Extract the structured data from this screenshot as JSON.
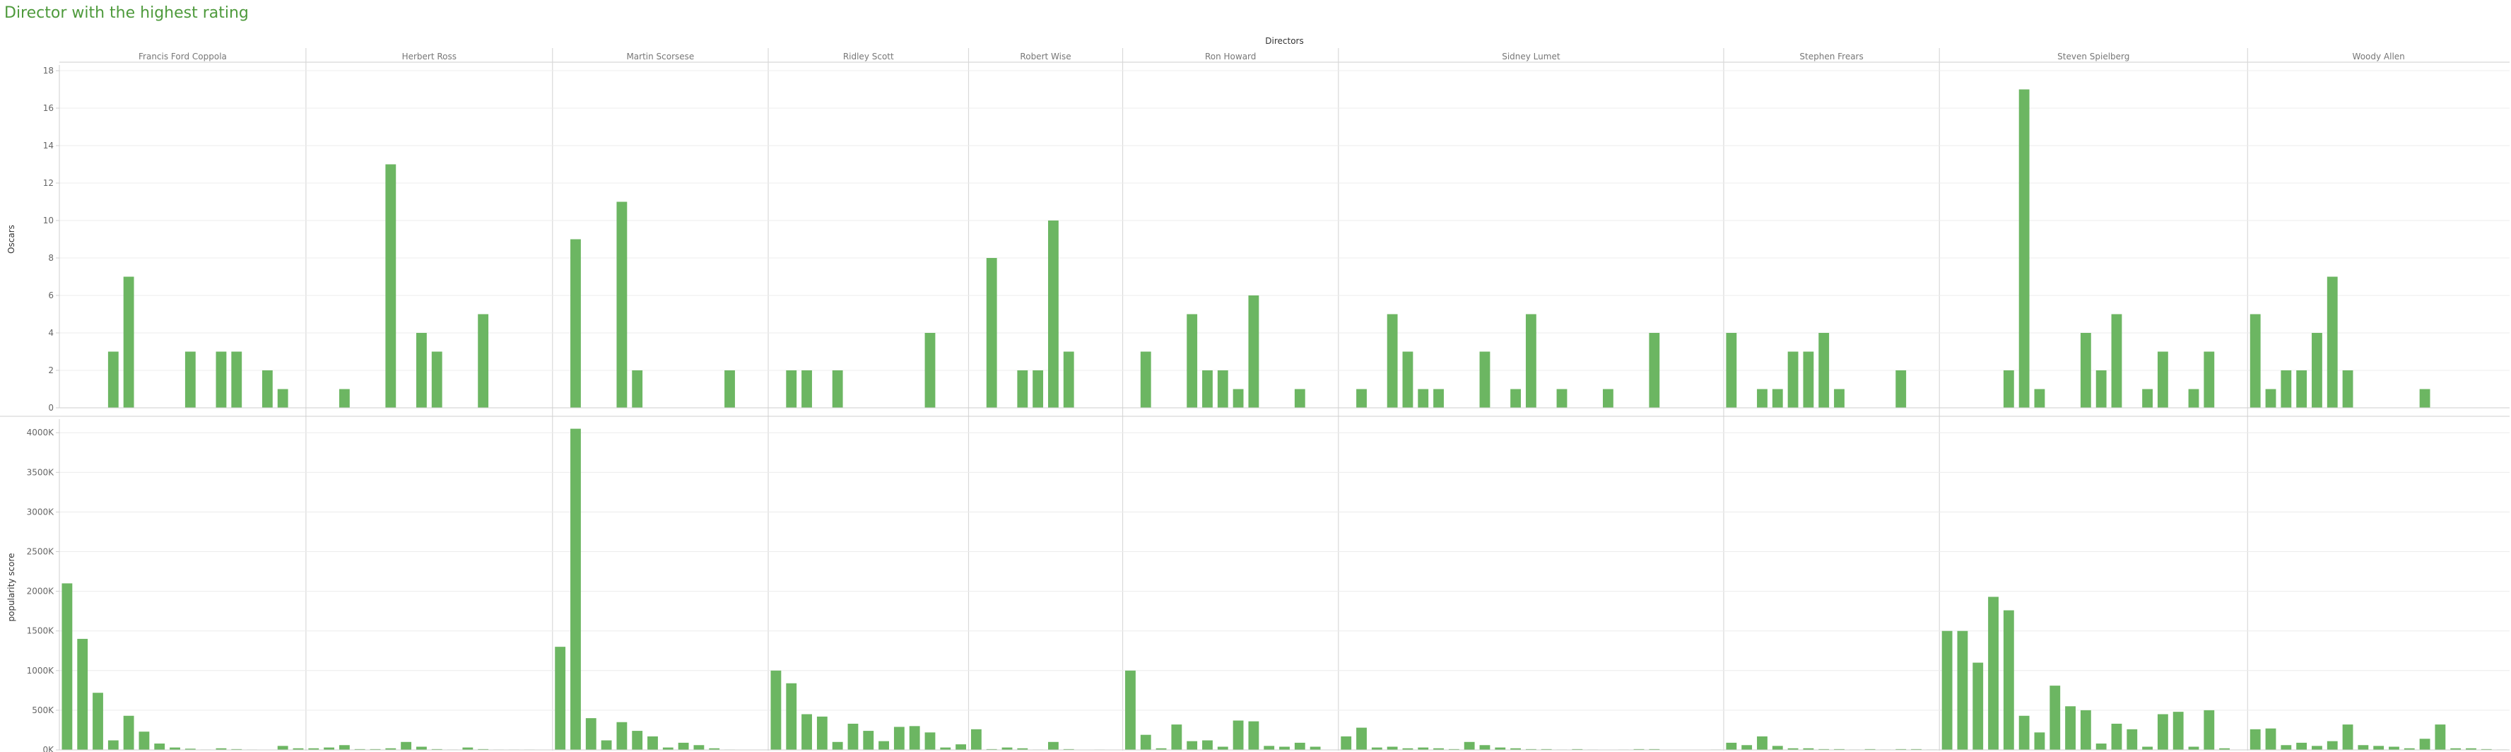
{
  "title": "Director with the highest rating",
  "colors": {
    "bar": "#6cb662",
    "title": "#4e9a3c",
    "grid": "#ececec",
    "axis": "#cfcfcf",
    "divider": "#d9d9d9"
  },
  "chart_data": {
    "type": "bar",
    "column_header": "Directors",
    "directors": [
      "Francis Ford Coppola",
      "Herbert Ross",
      "Martin Scorsese",
      "Ridley Scott",
      "Robert Wise",
      "Ron Howard",
      "Sidney Lumet",
      "Stephen Frears",
      "Steven Spielberg",
      "Woody Allen"
    ],
    "slots_per_director": [
      16,
      16,
      14,
      13,
      10,
      14,
      25,
      14,
      20,
      17
    ],
    "panels": [
      {
        "measure": "Oscars",
        "ylabel": "Oscars",
        "ylim": [
          0,
          18
        ],
        "ticks": [
          0,
          2,
          4,
          6,
          8,
          10,
          12,
          14,
          16,
          18
        ],
        "tick_labels": [
          "0",
          "2",
          "4",
          "6",
          "8",
          "10",
          "12",
          "14",
          "16",
          "18"
        ],
        "values": [
          [
            0,
            0,
            0,
            3,
            7,
            0,
            0,
            0,
            3,
            0,
            3,
            3,
            0,
            2,
            1,
            0
          ],
          [
            0,
            0,
            1,
            0,
            0,
            13,
            0,
            4,
            3,
            0,
            0,
            5,
            0,
            0,
            0,
            0
          ],
          [
            0,
            9,
            0,
            0,
            11,
            2,
            0,
            0,
            0,
            0,
            0,
            2,
            0,
            0
          ],
          [
            0,
            2,
            2,
            0,
            2,
            0,
            0,
            0,
            0,
            0,
            4,
            0,
            0
          ],
          [
            0,
            8,
            0,
            2,
            2,
            10,
            3,
            0,
            0,
            0
          ],
          [
            0,
            3,
            0,
            0,
            5,
            2,
            2,
            1,
            6,
            0,
            0,
            1,
            0,
            0
          ],
          [
            0,
            1,
            0,
            5,
            3,
            1,
            1,
            0,
            0,
            3,
            0,
            1,
            5,
            0,
            1,
            0,
            0,
            1,
            0,
            0,
            4,
            0,
            0,
            0,
            0
          ],
          [
            4,
            0,
            1,
            1,
            3,
            3,
            4,
            1,
            0,
            0,
            0,
            2,
            0,
            0
          ],
          [
            0,
            0,
            0,
            0,
            2,
            17,
            1,
            0,
            0,
            4,
            2,
            5,
            0,
            1,
            3,
            0,
            1,
            3,
            0,
            0
          ],
          [
            5,
            1,
            2,
            2,
            4,
            7,
            2,
            0,
            0,
            0,
            0,
            1,
            0,
            0,
            0,
            0,
            0
          ]
        ]
      },
      {
        "measure": "popularity score",
        "ylabel": "popularity score",
        "ylim": [
          0,
          4100000
        ],
        "ticks": [
          0,
          500000,
          1000000,
          1500000,
          2000000,
          2500000,
          3000000,
          3500000,
          4000000
        ],
        "tick_labels": [
          "0K",
          "500K",
          "1000K",
          "1500K",
          "2000K",
          "2500K",
          "3000K",
          "3500K",
          "4000K"
        ],
        "values": [
          [
            2100000,
            1400000,
            720000,
            120000,
            430000,
            230000,
            80000,
            30000,
            15000,
            5000,
            20000,
            10000,
            5000,
            0,
            50000,
            20000
          ],
          [
            20000,
            30000,
            60000,
            10000,
            10000,
            20000,
            100000,
            40000,
            10000,
            5000,
            30000,
            10000,
            5000,
            5000,
            5000,
            0
          ],
          [
            1300000,
            4050000,
            400000,
            120000,
            350000,
            240000,
            170000,
            30000,
            90000,
            60000,
            20000,
            5000,
            0,
            0
          ],
          [
            1000000,
            840000,
            450000,
            420000,
            100000,
            330000,
            240000,
            110000,
            290000,
            300000,
            220000,
            30000,
            70000
          ],
          [
            260000,
            10000,
            30000,
            20000,
            5000,
            100000,
            10000,
            0,
            5000,
            0
          ],
          [
            1000000,
            190000,
            20000,
            320000,
            110000,
            120000,
            40000,
            370000,
            360000,
            50000,
            40000,
            90000,
            40000,
            0
          ],
          [
            170000,
            280000,
            30000,
            40000,
            20000,
            30000,
            20000,
            10000,
            100000,
            60000,
            30000,
            20000,
            10000,
            10000,
            5000,
            10000,
            5000,
            0,
            5000,
            10000,
            10000,
            0,
            0,
            0,
            5000
          ],
          [
            90000,
            60000,
            170000,
            50000,
            20000,
            20000,
            10000,
            10000,
            5000,
            10000,
            5000,
            10000,
            10000,
            5000
          ],
          [
            1500000,
            1500000,
            1100000,
            1930000,
            1760000,
            430000,
            220000,
            810000,
            550000,
            500000,
            80000,
            330000,
            260000,
            40000,
            450000,
            480000,
            40000,
            500000,
            20000,
            0
          ],
          [
            260000,
            270000,
            60000,
            90000,
            50000,
            110000,
            320000,
            60000,
            50000,
            40000,
            20000,
            140000,
            320000,
            20000,
            20000,
            10000,
            5000
          ]
        ]
      }
    ]
  }
}
